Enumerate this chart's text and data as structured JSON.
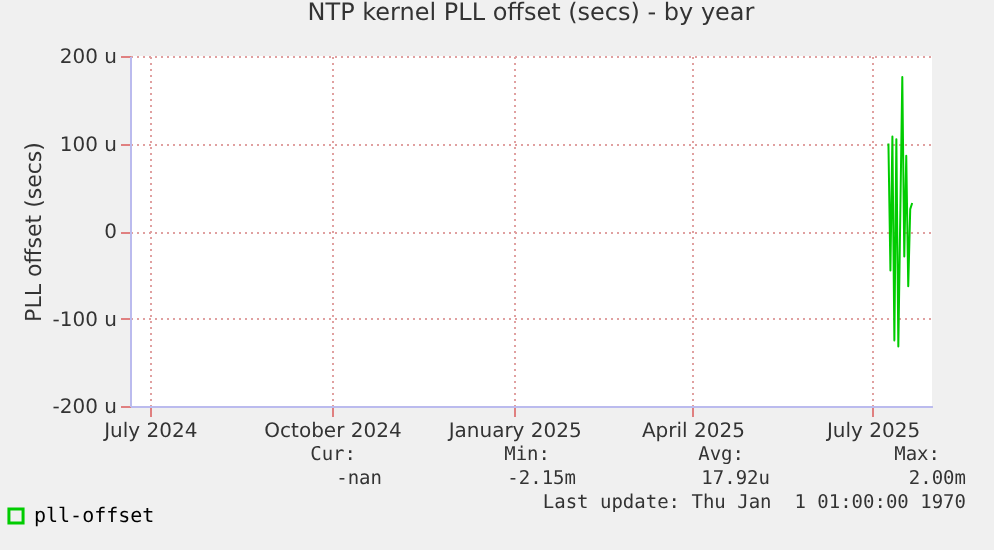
{
  "chart_data": {
    "type": "line",
    "title": "NTP kernel PLL offset (secs) - by year",
    "ylabel": "PLL offset (secs)",
    "x": [
      "2025-07-09",
      "2025-07-10",
      "2025-07-11",
      "2025-07-12",
      "2025-07-13",
      "2025-07-14",
      "2025-07-15",
      "2025-07-16",
      "2025-07-17",
      "2025-07-18",
      "2025-07-19",
      "2025-07-20",
      "2025-07-21"
    ],
    "series": [
      {
        "name": "pll-offset",
        "color": "#00cc00",
        "values": [
          100,
          -45,
          108,
          -125,
          105,
          -132,
          20,
          176,
          -29,
          86,
          -63,
          25,
          32
        ]
      }
    ],
    "xlim": [
      "2024-06-21",
      "2025-07-31"
    ],
    "xticks": [
      {
        "value": "2024-07-01",
        "label": "July 2024"
      },
      {
        "value": "2024-10-01",
        "label": "October 2024"
      },
      {
        "value": "2025-01-01",
        "label": "January 2025"
      },
      {
        "value": "2025-04-01",
        "label": "April 2025"
      },
      {
        "value": "2025-07-01",
        "label": "July 2025"
      }
    ],
    "ylim": [
      -200,
      200
    ],
    "yticks": [
      {
        "value": -200,
        "label": "-200 u"
      },
      {
        "value": -100,
        "label": "-100 u"
      },
      {
        "value": 0,
        "label": "0"
      },
      {
        "value": 100,
        "label": "100 u"
      },
      {
        "value": 200,
        "label": "200 u"
      }
    ],
    "grid": true,
    "legend": "bottom left",
    "line_style": "solid",
    "marker": "none",
    "annotations": [
      "Cur:",
      "-nan",
      "Min:",
      "-2.15m",
      "Avg:",
      "17.92u",
      "Max:",
      "2.00m",
      "Last update: Thu Jan  1 01:00:00 1970"
    ]
  }
}
